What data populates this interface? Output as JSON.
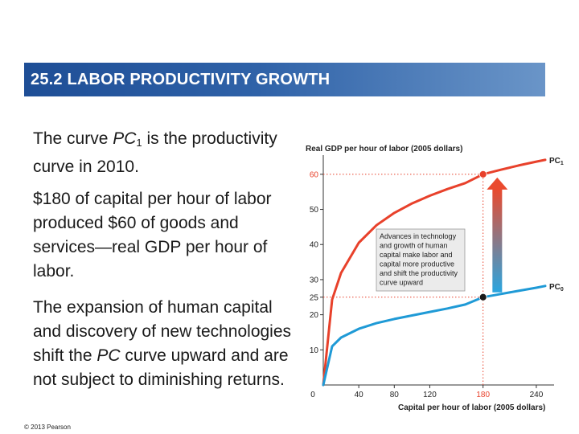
{
  "slide": {
    "title": "25.2  LABOR PRODUCTIVITY GROWTH",
    "paragraph1": {
      "pre": "The curve ",
      "italic": "PC",
      "sub": "1",
      "post": " is the productivity curve in 2010."
    },
    "paragraph2": "$180 of capital per hour of labor produced $60 of goods and services—real GDP per hour of labor.",
    "paragraph3": {
      "pre": "The expansion of human capital and discovery of new technologies shift the ",
      "italic": "PC",
      "post": " curve upward and are not subject to diminishing returns."
    },
    "copyright": "© 2013 Pearson"
  },
  "chart_data": {
    "type": "line",
    "xlabel": "Capital per hour of labor (2005 dollars)",
    "ylabel": "Real GDP per hour of labor (2005 dollars)",
    "xlim": [
      0,
      260
    ],
    "ylim": [
      0,
      65
    ],
    "xticks": [
      0,
      40,
      80,
      120,
      180,
      240
    ],
    "yticks": [
      10,
      20,
      25,
      30,
      40,
      50,
      60
    ],
    "highlight_x": 180,
    "highlight_y": [
      25,
      60
    ],
    "series": [
      {
        "name": "PC1",
        "color": "#e8412b",
        "x": [
          0,
          10,
          20,
          40,
          60,
          80,
          100,
          120,
          140,
          160,
          180,
          200,
          220,
          240,
          250
        ],
        "y": [
          0,
          24.3,
          31.9,
          40.5,
          45.5,
          49.0,
          51.7,
          53.9,
          55.8,
          57.5,
          60.0,
          61.3,
          62.5,
          63.6,
          64.1
        ]
      },
      {
        "name": "PC0",
        "color": "#1f9ad6",
        "x": [
          0,
          10,
          20,
          40,
          60,
          80,
          100,
          120,
          140,
          160,
          180,
          200,
          220,
          240,
          250
        ],
        "y": [
          0,
          11.0,
          13.5,
          16.0,
          17.6,
          18.8,
          19.8,
          20.8,
          21.8,
          22.9,
          25.0,
          25.9,
          26.8,
          27.7,
          28.2
        ]
      }
    ],
    "points": [
      {
        "x": 180,
        "y": 60,
        "color": "#e8412b"
      },
      {
        "x": 180,
        "y": 25,
        "color": "#1a1a1a"
      }
    ],
    "annotation": {
      "lines": [
        "Advances in technology",
        "and growth of human",
        "capital make labor and",
        "capital more productive",
        "and shift the productivity",
        "curve upward"
      ]
    }
  }
}
